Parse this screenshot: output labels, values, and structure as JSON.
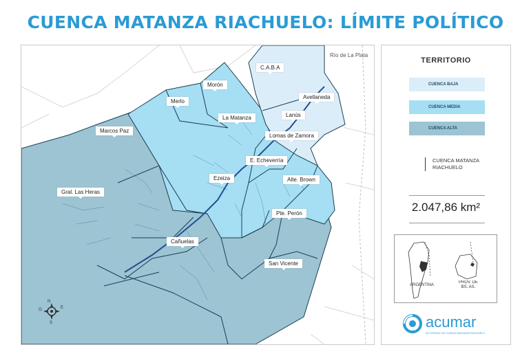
{
  "title": "CUENCA MATANZA RIACHUELO: LÍMITE POLÍTICO",
  "river_label": "Río de La Plata",
  "municipalities": [
    {
      "name": "C.A.B.A",
      "zone": "baja"
    },
    {
      "name": "Morón",
      "zone": "media"
    },
    {
      "name": "Merlo",
      "zone": "media"
    },
    {
      "name": "Avellaneda",
      "zone": "baja"
    },
    {
      "name": "Lanús",
      "zone": "baja"
    },
    {
      "name": "La Matanza",
      "zone": "media"
    },
    {
      "name": "Marcos Paz",
      "zone": "alta"
    },
    {
      "name": "Lomas de Zamora",
      "zone": "baja"
    },
    {
      "name": "E. Echeverría",
      "zone": "media"
    },
    {
      "name": "Ezeiza",
      "zone": "media"
    },
    {
      "name": "Alte. Brown",
      "zone": "media"
    },
    {
      "name": "Gral. Las Heras",
      "zone": "alta"
    },
    {
      "name": "Pte. Perón",
      "zone": "alta"
    },
    {
      "name": "Cañuelas",
      "zone": "alta"
    },
    {
      "name": "San Vicente",
      "zone": "alta"
    }
  ],
  "compass": {
    "n": "N",
    "s": "S",
    "e": "E",
    "o": "O"
  },
  "legend": {
    "title": "TERRITORIO",
    "items": [
      {
        "label": "CUENCA BAJA",
        "color": "#dcedfa"
      },
      {
        "label": "CUENCA MEDIA",
        "color": "#a6def3"
      },
      {
        "label": "CUENCA ALTA",
        "color": "#9cc4d3"
      }
    ],
    "basin_line": "CUENCA MATANZA RIACHUELO",
    "area": "2.047,86 km²"
  },
  "inset": {
    "left_label": "ARGENTINA",
    "right_label": "PROV. DE BS. AS."
  },
  "logo": {
    "name": "acumar",
    "tagline": "AUTORIDAD DE CUENCA MATANZA RIACHUELO"
  },
  "colors": {
    "title": "#2a9bd5",
    "baja": "#dcedfa",
    "media": "#a6def3",
    "alta": "#9cc4d3",
    "river": "#1f4f8f",
    "border": "#1a3d52"
  }
}
